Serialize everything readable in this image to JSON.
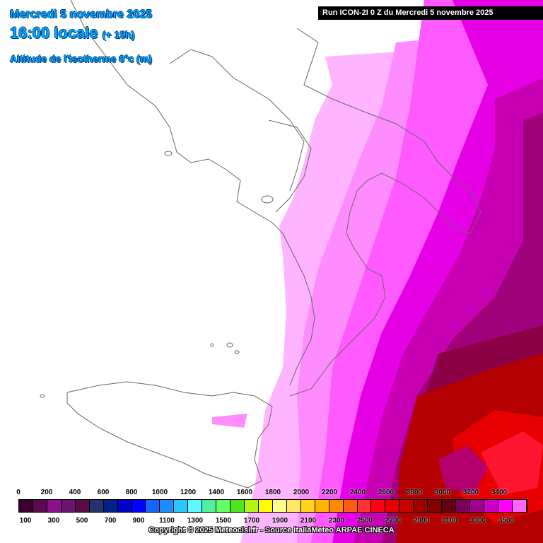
{
  "header": {
    "date_line": "Mercredi 5 novembre 2025",
    "time_line": "16:00 locale",
    "time_offset": "(+ 15h)",
    "param_line": "Altitude de l'isotherme 0°c (m)",
    "run_line": "Run ICON-2I 0 Z du Mercredi 5 novembre 2025"
  },
  "legend": {
    "upper_labels": [
      "0",
      "200",
      "400",
      "600",
      "800",
      "1000",
      "1200",
      "1400",
      "1600",
      "1800",
      "2000",
      "2200",
      "2400",
      "2600",
      "2800",
      "3000",
      "3200",
      "3400"
    ],
    "lower_labels": [
      "100",
      "300",
      "500",
      "700",
      "900",
      "1100",
      "1300",
      "1500",
      "1700",
      "1900",
      "2100",
      "2300",
      "2500",
      "2700",
      "2900",
      "3100",
      "3300",
      "3500"
    ],
    "colors": [
      "#3a0030",
      "#5a0a50",
      "#8c108c",
      "#6a1470",
      "#5c0c44",
      "#26326e",
      "#00208c",
      "#0000c8",
      "#0000ff",
      "#1464ff",
      "#1e8cff",
      "#28c8ff",
      "#5afaff",
      "#50f0a0",
      "#64ff64",
      "#50e61e",
      "#b4f514",
      "#ffff00",
      "#ffff8c",
      "#ffe664",
      "#ffd21e",
      "#ffb400",
      "#ff8c00",
      "#ff5a14",
      "#ff3232",
      "#ff0014",
      "#e60000",
      "#c80000",
      "#a00000",
      "#820000",
      "#640014",
      "#78005a",
      "#a0008c",
      "#c800c8",
      "#ff00ff",
      "#ff64ff"
    ]
  },
  "footer": {
    "copyright": "Copyright © 2025 Meteocisl.fr - Source italiaMeteo ARPAE CINECA"
  }
}
